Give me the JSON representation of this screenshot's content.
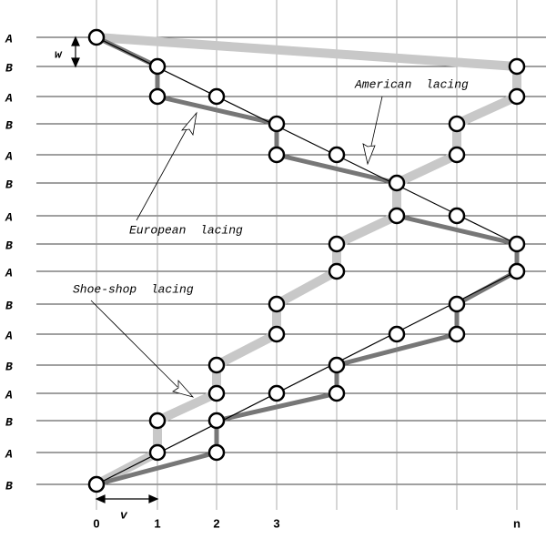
{
  "row_labels": [
    "A",
    "B",
    "A",
    "B",
    "A",
    "B",
    "A",
    "B",
    "A",
    "B",
    "A",
    "B",
    "A",
    "B",
    "A",
    "B"
  ],
  "column_labels": [
    "0",
    "1",
    "2",
    "3",
    "n"
  ],
  "dimensions": {
    "row_spacing": "w",
    "column_spacing": "v"
  },
  "annotations": {
    "american": "American lacing",
    "european": "European lacing",
    "shoe_shop": "Shoe-shop lacing"
  }
}
